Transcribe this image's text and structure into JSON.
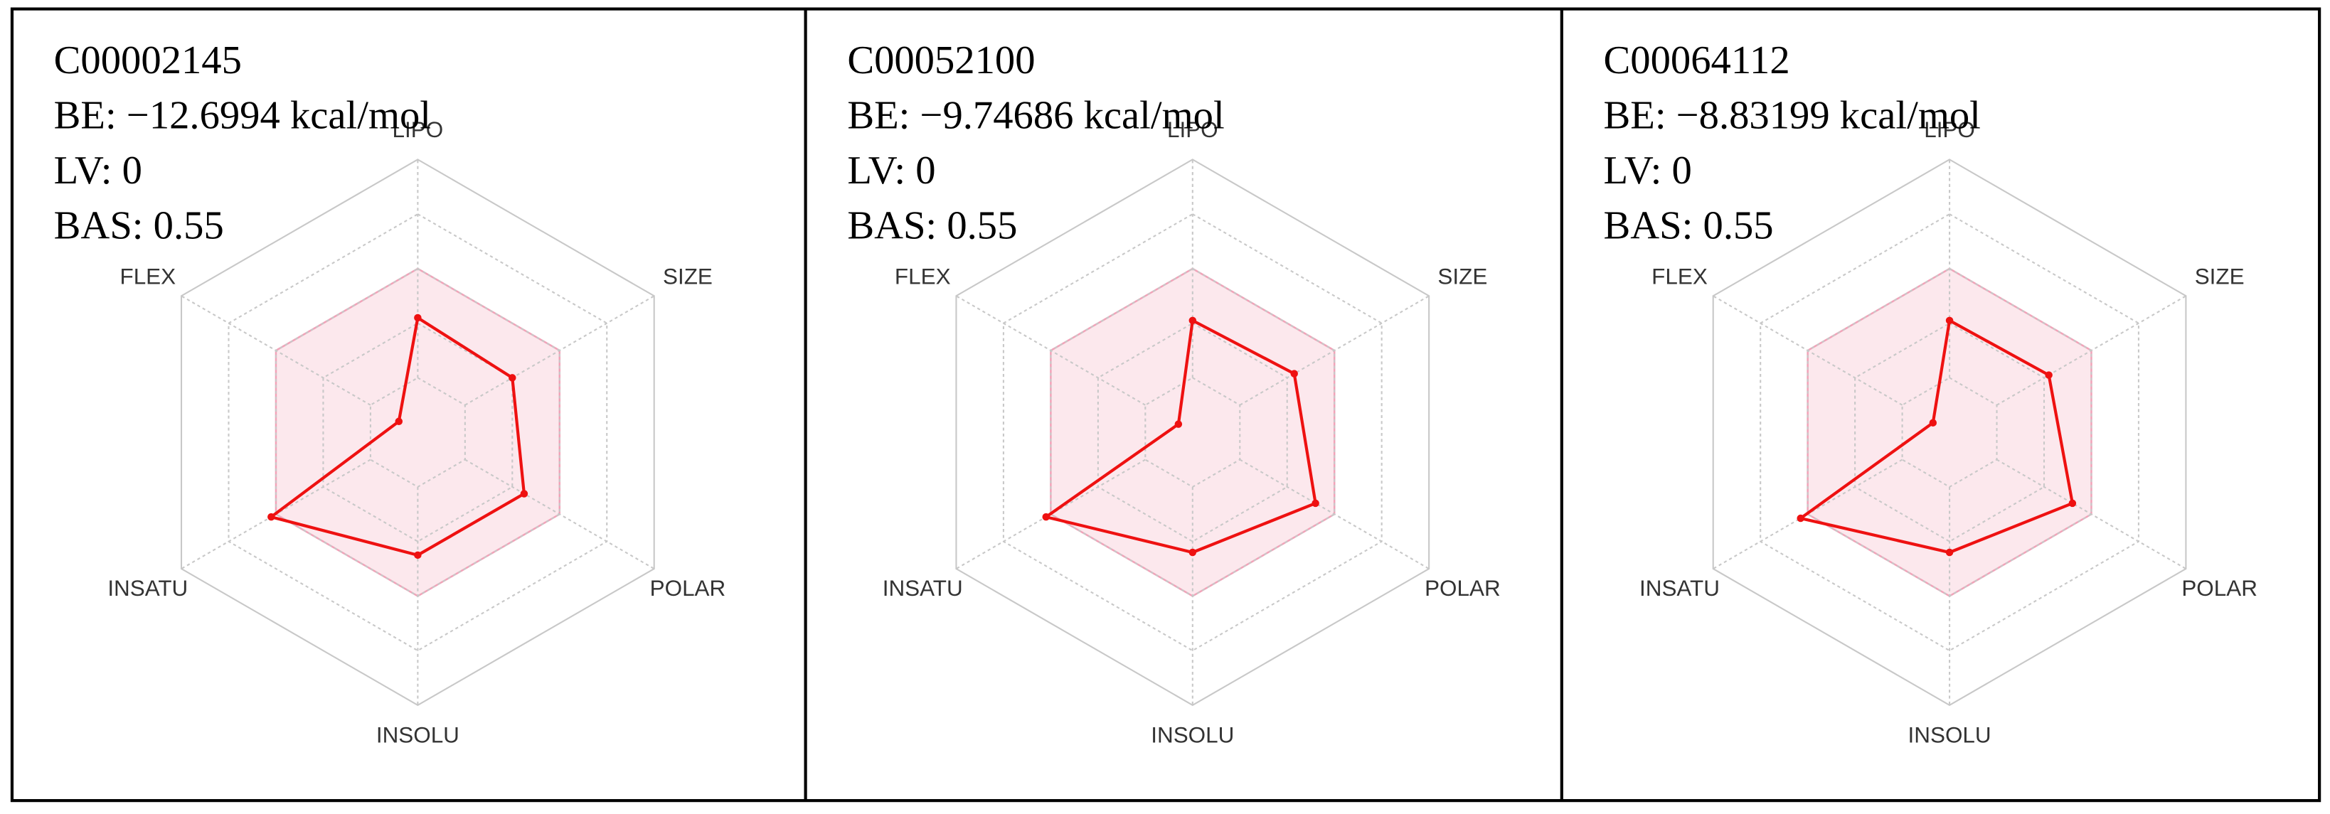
{
  "chart_data": [
    {
      "type": "radar",
      "title_lines": [
        "C00002145",
        "BE: −12.6994 kcal/mol",
        "LV: 0",
        "BAS: 0.55"
      ],
      "axes": [
        "LIPO",
        "SIZE",
        "POLAR",
        "INSOLU",
        "INSATU",
        "FLEX"
      ],
      "values": [
        2.1,
        2.0,
        2.25,
        2.25,
        3.1,
        0.4
      ],
      "color": "#ee1111",
      "rlim": [
        0,
        5
      ],
      "rticks": [
        1,
        2,
        3,
        4,
        5
      ],
      "shaded_max": 3,
      "shade_color": "#f2a3b9"
    },
    {
      "type": "radar",
      "title_lines": [
        "C00052100",
        "BE: −9.74686 kcal/mol",
        "LV: 0",
        "BAS: 0.55"
      ],
      "axes": [
        "LIPO",
        "SIZE",
        "POLAR",
        "INSOLU",
        "INSATU",
        "FLEX"
      ],
      "values": [
        2.05,
        2.15,
        2.6,
        2.2,
        3.1,
        0.3
      ],
      "color": "#ee1111",
      "rlim": [
        0,
        5
      ],
      "rticks": [
        1,
        2,
        3,
        4,
        5
      ],
      "shaded_max": 3,
      "shade_color": "#f2a3b9"
    },
    {
      "type": "radar",
      "title_lines": [
        "C00064112",
        "BE: −8.83199 kcal/mol",
        "LV: 0",
        "BAS: 0.55"
      ],
      "axes": [
        "LIPO",
        "SIZE",
        "POLAR",
        "INSOLU",
        "INSATU",
        "FLEX"
      ],
      "values": [
        2.05,
        2.1,
        2.6,
        2.2,
        3.15,
        0.35
      ],
      "color": "#ee1111",
      "rlim": [
        0,
        5
      ],
      "rticks": [
        1,
        2,
        3,
        4,
        5
      ],
      "shaded_max": 3,
      "shade_color": "#f2a3b9"
    }
  ]
}
